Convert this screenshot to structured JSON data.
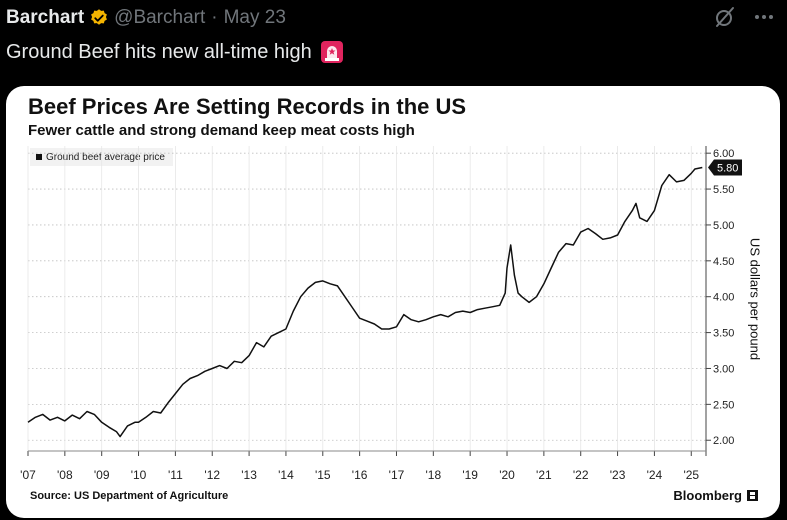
{
  "tweet": {
    "author_name": "Barchart",
    "handle": "@Barchart",
    "separator": "·",
    "date": "May 23",
    "text": "Ground Beef hits new all-time high",
    "icons": {
      "verified": "verified-badge-icon",
      "grok": "grok-slash-icon",
      "more": "more-horizontal-icon",
      "siren": "siren-emoji-icon"
    },
    "colors": {
      "background": "#000000",
      "text": "#e7e9ea",
      "muted": "#71767b",
      "verified": "#f4b400"
    }
  },
  "card": {
    "source": "Source: US Department of Agriculture",
    "brand": "Bloomberg"
  },
  "chart_data": {
    "type": "line",
    "title": "Beef Prices Are Setting Records in the US",
    "subtitle": "Fewer cattle and strong demand keep meat costs high",
    "ylabel": "US dollars per pound",
    "xlabel": "",
    "ylim": [
      1.85,
      6.1
    ],
    "xlim": [
      2007,
      2025.4
    ],
    "yticks": [
      2.0,
      2.5,
      3.0,
      3.5,
      4.0,
      4.5,
      5.0,
      5.5,
      6.0
    ],
    "ytick_labels": [
      "2.00",
      "2.50",
      "3.00",
      "3.50",
      "4.00",
      "4.50",
      "5.00",
      "5.50",
      "6.00"
    ],
    "xticks": [
      2007,
      2008,
      2009,
      2010,
      2011,
      2012,
      2013,
      2014,
      2015,
      2016,
      2017,
      2018,
      2019,
      2020,
      2021,
      2022,
      2023,
      2024,
      2025
    ],
    "xtick_labels": [
      "'07",
      "'08",
      "'09",
      "'10",
      "'11",
      "'12",
      "'13",
      "'14",
      "'15",
      "'16",
      "'17",
      "'18",
      "'19",
      "'20",
      "'21",
      "'22",
      "'23",
      "'24",
      "'25"
    ],
    "grid": true,
    "legend": "top-left",
    "last_value_label": "5.80",
    "series": [
      {
        "name": "Ground beef average price",
        "color": "#111111",
        "x": [
          2007.0,
          2007.2,
          2007.4,
          2007.6,
          2007.8,
          2008.0,
          2008.2,
          2008.4,
          2008.6,
          2008.8,
          2009.0,
          2009.2,
          2009.4,
          2009.5,
          2009.7,
          2009.9,
          2010.0,
          2010.2,
          2010.4,
          2010.6,
          2010.8,
          2011.0,
          2011.2,
          2011.4,
          2011.6,
          2011.8,
          2012.0,
          2012.2,
          2012.4,
          2012.6,
          2012.8,
          2013.0,
          2013.2,
          2013.4,
          2013.6,
          2013.8,
          2014.0,
          2014.2,
          2014.4,
          2014.6,
          2014.8,
          2015.0,
          2015.2,
          2015.4,
          2015.6,
          2015.8,
          2016.0,
          2016.2,
          2016.4,
          2016.6,
          2016.8,
          2017.0,
          2017.2,
          2017.4,
          2017.6,
          2017.8,
          2018.0,
          2018.2,
          2018.4,
          2018.6,
          2018.8,
          2019.0,
          2019.2,
          2019.4,
          2019.6,
          2019.8,
          2019.95,
          2020.0,
          2020.1,
          2020.2,
          2020.3,
          2020.4,
          2020.6,
          2020.8,
          2021.0,
          2021.2,
          2021.4,
          2021.6,
          2021.8,
          2022.0,
          2022.2,
          2022.4,
          2022.6,
          2022.8,
          2023.0,
          2023.2,
          2023.4,
          2023.5,
          2023.6,
          2023.8,
          2024.0,
          2024.2,
          2024.4,
          2024.6,
          2024.8,
          2025.0,
          2025.1,
          2025.3
        ],
        "values": [
          2.25,
          2.32,
          2.36,
          2.28,
          2.32,
          2.27,
          2.35,
          2.3,
          2.4,
          2.36,
          2.25,
          2.18,
          2.12,
          2.05,
          2.2,
          2.25,
          2.25,
          2.32,
          2.4,
          2.38,
          2.52,
          2.65,
          2.78,
          2.86,
          2.9,
          2.96,
          3.0,
          3.04,
          3.0,
          3.1,
          3.08,
          3.18,
          3.36,
          3.3,
          3.45,
          3.5,
          3.55,
          3.8,
          4.0,
          4.12,
          4.2,
          4.22,
          4.18,
          4.15,
          4.0,
          3.85,
          3.7,
          3.66,
          3.62,
          3.55,
          3.55,
          3.58,
          3.75,
          3.68,
          3.65,
          3.68,
          3.72,
          3.75,
          3.72,
          3.78,
          3.8,
          3.78,
          3.82,
          3.84,
          3.86,
          3.88,
          4.05,
          4.4,
          4.72,
          4.3,
          4.05,
          4.0,
          3.92,
          4.0,
          4.18,
          4.4,
          4.62,
          4.74,
          4.72,
          4.9,
          4.95,
          4.88,
          4.8,
          4.82,
          4.86,
          5.05,
          5.2,
          5.3,
          5.1,
          5.05,
          5.2,
          5.55,
          5.7,
          5.6,
          5.62,
          5.72,
          5.78,
          5.8
        ]
      }
    ]
  }
}
